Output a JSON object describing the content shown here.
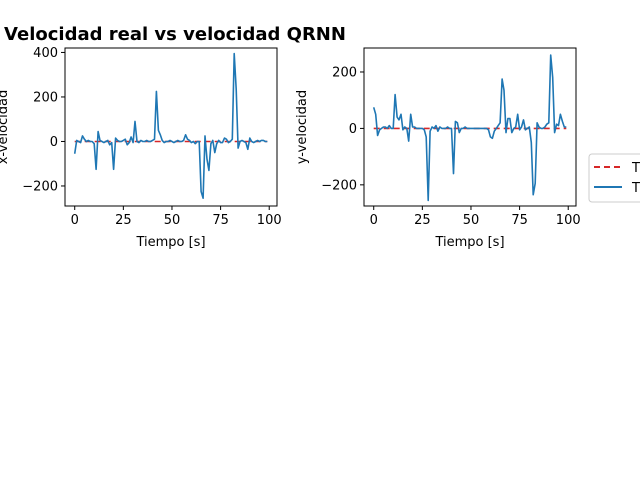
{
  "figure": {
    "title": "Velocidad real vs velocidad QRNN"
  },
  "colors": {
    "true_series": "#d62728",
    "pred_series": "#1f77b4"
  },
  "legend": {
    "placement": "right-middle",
    "items": [
      {
        "label": "T",
        "style": "dashed",
        "color": "#d62728"
      },
      {
        "label": "T",
        "style": "solid",
        "color": "#1f77b4"
      }
    ]
  },
  "chart_data": [
    {
      "type": "line",
      "xlabel": "Tiempo [s]",
      "ylabel": "x-velocidad",
      "xlim": [
        -5,
        104
      ],
      "ylim": [
        -290,
        420
      ],
      "xticks": [
        0,
        25,
        50,
        75,
        100
      ],
      "yticks": [
        -200,
        0,
        200,
        400
      ],
      "grid": false,
      "series": [
        {
          "style": "dashed",
          "color": "#d62728",
          "x": [
            0,
            99
          ],
          "y": [
            0,
            0
          ]
        },
        {
          "style": "solid",
          "color": "#1f77b4",
          "x": [
            0,
            1,
            2,
            3,
            4,
            5,
            6,
            7,
            8,
            9,
            10,
            11,
            12,
            13,
            14,
            15,
            16,
            17,
            18,
            19,
            20,
            21,
            22,
            23,
            24,
            25,
            26,
            27,
            28,
            29,
            30,
            31,
            32,
            33,
            34,
            35,
            36,
            37,
            38,
            39,
            40,
            41,
            42,
            43,
            44,
            45,
            46,
            47,
            48,
            49,
            50,
            51,
            52,
            53,
            54,
            55,
            56,
            57,
            58,
            59,
            60,
            61,
            62,
            63,
            64,
            65,
            66,
            67,
            68,
            69,
            70,
            71,
            72,
            73,
            74,
            75,
            76,
            77,
            78,
            79,
            80,
            81,
            82,
            83,
            84,
            85,
            86,
            87,
            88,
            89,
            90,
            91,
            92,
            93,
            94,
            95,
            96,
            97,
            98,
            99
          ],
          "y": [
            -55,
            5,
            0,
            -5,
            25,
            10,
            0,
            5,
            0,
            0,
            -10,
            -125,
            45,
            5,
            0,
            -5,
            0,
            5,
            -15,
            -5,
            -125,
            15,
            5,
            0,
            0,
            5,
            10,
            -15,
            -5,
            20,
            -5,
            90,
            0,
            -5,
            5,
            0,
            0,
            5,
            0,
            0,
            5,
            10,
            225,
            50,
            30,
            5,
            -5,
            0,
            0,
            5,
            0,
            -5,
            0,
            5,
            0,
            0,
            5,
            30,
            10,
            5,
            -5,
            0,
            -10,
            0,
            0,
            -225,
            -255,
            25,
            -80,
            -130,
            -10,
            5,
            -50,
            -10,
            5,
            -5,
            -5,
            15,
            10,
            -5,
            0,
            10,
            395,
            235,
            -30,
            0,
            5,
            0,
            -5,
            -35,
            15,
            0,
            -5,
            0,
            5,
            0,
            5,
            5,
            0,
            0
          ]
        }
      ]
    },
    {
      "type": "line",
      "xlabel": "Tiempo [s]",
      "ylabel": "y-velocidad",
      "xlim": [
        -5,
        104
      ],
      "ylim": [
        -275,
        285
      ],
      "xticks": [
        0,
        25,
        50,
        75,
        100
      ],
      "yticks": [
        -200,
        0,
        200
      ],
      "grid": false,
      "series": [
        {
          "style": "dashed",
          "color": "#d62728",
          "x": [
            0,
            99
          ],
          "y": [
            0,
            0
          ]
        },
        {
          "style": "solid",
          "color": "#1f77b4",
          "x": [
            0,
            1,
            2,
            3,
            4,
            5,
            6,
            7,
            8,
            9,
            10,
            11,
            12,
            13,
            14,
            15,
            16,
            17,
            18,
            19,
            20,
            21,
            22,
            23,
            24,
            25,
            26,
            27,
            28,
            29,
            30,
            31,
            32,
            33,
            34,
            35,
            36,
            37,
            38,
            39,
            40,
            41,
            42,
            43,
            44,
            45,
            46,
            47,
            48,
            49,
            50,
            51,
            52,
            53,
            54,
            55,
            56,
            57,
            58,
            59,
            60,
            61,
            62,
            63,
            64,
            65,
            66,
            67,
            68,
            69,
            70,
            71,
            72,
            73,
            74,
            75,
            76,
            77,
            78,
            79,
            80,
            81,
            82,
            83,
            84,
            85,
            86,
            87,
            88,
            89,
            90,
            91,
            92,
            93,
            94,
            95,
            96,
            97,
            98,
            99
          ],
          "y": [
            75,
            50,
            -25,
            -5,
            0,
            5,
            5,
            0,
            10,
            0,
            0,
            120,
            40,
            30,
            50,
            -5,
            5,
            0,
            -45,
            50,
            5,
            5,
            0,
            0,
            0,
            0,
            -5,
            -30,
            -255,
            -10,
            5,
            0,
            10,
            -10,
            5,
            0,
            0,
            0,
            5,
            0,
            0,
            -160,
            25,
            20,
            -15,
            0,
            0,
            5,
            0,
            0,
            0,
            0,
            0,
            0,
            0,
            0,
            0,
            0,
            0,
            -5,
            -30,
            -35,
            -10,
            0,
            10,
            20,
            175,
            135,
            -15,
            35,
            35,
            -15,
            0,
            5,
            50,
            -5,
            5,
            30,
            -5,
            0,
            5,
            -50,
            -235,
            -195,
            20,
            5,
            0,
            0,
            5,
            15,
            20,
            260,
            180,
            -15,
            15,
            10,
            50,
            25,
            5,
            5
          ]
        }
      ]
    }
  ]
}
